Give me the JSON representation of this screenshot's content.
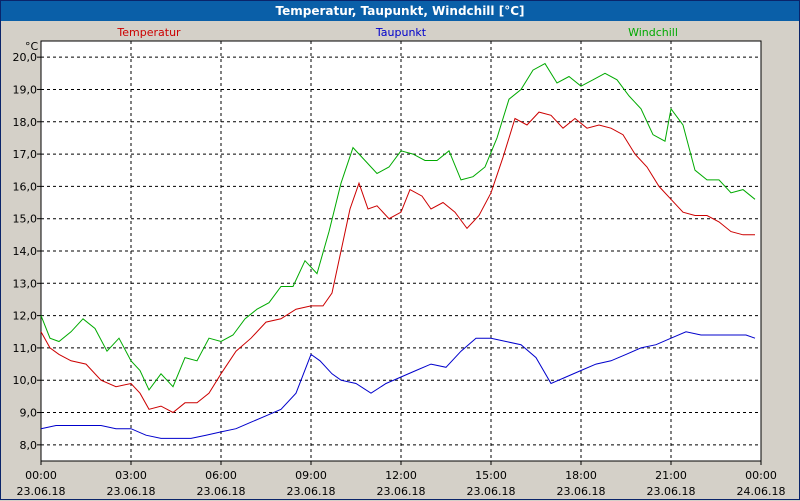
{
  "window": {
    "title": "Temperatur, Taupunkt, Windchill [°C]"
  },
  "chart_data": {
    "type": "line",
    "y_unit": "°C",
    "ylim": [
      7.5,
      20.5
    ],
    "y_ticks": [
      "8,0",
      "9,0",
      "10,0",
      "11,0",
      "12,0",
      "13,0",
      "14,0",
      "15,0",
      "16,0",
      "17,0",
      "18,0",
      "19,0",
      "20,0"
    ],
    "y_tick_values": [
      8,
      9,
      10,
      11,
      12,
      13,
      14,
      15,
      16,
      17,
      18,
      19,
      20
    ],
    "xlim": [
      0,
      24
    ],
    "x_ticks": [
      {
        "x": 0,
        "time": "00:00",
        "date": "23.06.18"
      },
      {
        "x": 3,
        "time": "03:00",
        "date": "23.06.18"
      },
      {
        "x": 6,
        "time": "06:00",
        "date": "23.06.18"
      },
      {
        "x": 9,
        "time": "09:00",
        "date": "23.06.18"
      },
      {
        "x": 12,
        "time": "12:00",
        "date": "23.06.18"
      },
      {
        "x": 15,
        "time": "15:00",
        "date": "23.06.18"
      },
      {
        "x": 18,
        "time": "18:00",
        "date": "23.06.18"
      },
      {
        "x": 21,
        "time": "21:00",
        "date": "23.06.18"
      },
      {
        "x": 24,
        "time": "00:00",
        "date": "24.06.18"
      }
    ],
    "grid": true,
    "series": [
      {
        "name": "Temperatur",
        "color": "#cc0000",
        "x": [
          0,
          0.3,
          0.6,
          1,
          1.5,
          2,
          2.5,
          3,
          3.3,
          3.6,
          4,
          4.4,
          4.8,
          5.2,
          5.6,
          6,
          6.5,
          7,
          7.5,
          8,
          8.5,
          9,
          9.4,
          9.7,
          10,
          10.3,
          10.6,
          10.9,
          11.2,
          11.6,
          12,
          12.3,
          12.7,
          13,
          13.4,
          13.8,
          14.2,
          14.6,
          15,
          15.4,
          15.8,
          16.2,
          16.6,
          17,
          17.4,
          17.8,
          18.2,
          18.6,
          19,
          19.4,
          19.8,
          20.2,
          20.6,
          21,
          21.4,
          21.8,
          22.2,
          22.6,
          23,
          23.4,
          23.8
        ],
        "y": [
          11.5,
          11.0,
          10.8,
          10.6,
          10.5,
          10.0,
          9.8,
          9.9,
          9.6,
          9.1,
          9.2,
          9.0,
          9.3,
          9.3,
          9.6,
          10.2,
          10.9,
          11.3,
          11.8,
          11.9,
          12.2,
          12.3,
          12.3,
          12.7,
          14.0,
          15.3,
          16.1,
          15.3,
          15.4,
          15.0,
          15.2,
          15.9,
          15.7,
          15.3,
          15.5,
          15.2,
          14.7,
          15.1,
          15.8,
          16.9,
          18.1,
          17.9,
          18.3,
          18.2,
          17.8,
          18.1,
          17.8,
          17.9,
          17.8,
          17.6,
          17.0,
          16.6,
          16.0,
          15.6,
          15.2,
          15.1,
          15.1,
          14.9,
          14.6,
          14.5,
          14.5
        ]
      },
      {
        "name": "Taupunkt",
        "color": "#0000cc",
        "x": [
          0,
          0.5,
          1,
          1.5,
          2,
          2.5,
          3,
          3.5,
          4,
          4.5,
          5,
          5.5,
          6,
          6.5,
          7,
          7.5,
          8,
          8.5,
          9,
          9.3,
          9.7,
          10,
          10.5,
          11,
          11.5,
          12,
          12.5,
          13,
          13.5,
          14,
          14.5,
          15,
          15.5,
          16,
          16.5,
          17,
          17.5,
          18,
          18.5,
          19,
          19.5,
          20,
          20.5,
          21,
          21.5,
          22,
          22.5,
          23,
          23.5,
          23.8
        ],
        "y": [
          8.5,
          8.6,
          8.6,
          8.6,
          8.6,
          8.5,
          8.5,
          8.3,
          8.2,
          8.2,
          8.2,
          8.3,
          8.4,
          8.5,
          8.7,
          8.9,
          9.1,
          9.6,
          10.8,
          10.6,
          10.2,
          10.0,
          9.9,
          9.6,
          9.9,
          10.1,
          10.3,
          10.5,
          10.4,
          10.9,
          11.3,
          11.3,
          11.2,
          11.1,
          10.7,
          9.9,
          10.1,
          10.3,
          10.5,
          10.6,
          10.8,
          11.0,
          11.1,
          11.3,
          11.5,
          11.4,
          11.4,
          11.4,
          11.4,
          11.3
        ]
      },
      {
        "name": "Windchill",
        "color": "#00aa00",
        "x": [
          0,
          0.3,
          0.6,
          1,
          1.4,
          1.8,
          2.2,
          2.6,
          3,
          3.3,
          3.6,
          4,
          4.4,
          4.8,
          5.2,
          5.6,
          6,
          6.4,
          6.8,
          7.2,
          7.6,
          8,
          8.4,
          8.8,
          9.2,
          9.6,
          10,
          10.4,
          10.8,
          11.2,
          11.6,
          12,
          12.4,
          12.8,
          13.2,
          13.6,
          14,
          14.4,
          14.8,
          15.2,
          15.6,
          16,
          16.4,
          16.8,
          17.2,
          17.6,
          18,
          18.4,
          18.8,
          19.2,
          19.6,
          20,
          20.4,
          20.8,
          21,
          21.4,
          21.8,
          22.2,
          22.6,
          23,
          23.4,
          23.8
        ],
        "y": [
          12.0,
          11.3,
          11.2,
          11.5,
          11.9,
          11.6,
          10.9,
          11.3,
          10.6,
          10.3,
          9.7,
          10.2,
          9.8,
          10.7,
          10.6,
          11.3,
          11.2,
          11.4,
          11.9,
          12.2,
          12.4,
          12.9,
          12.9,
          13.7,
          13.3,
          14.6,
          16.1,
          17.2,
          16.8,
          16.4,
          16.6,
          17.1,
          17.0,
          16.8,
          16.8,
          17.1,
          16.2,
          16.3,
          16.6,
          17.5,
          18.7,
          19.0,
          19.6,
          19.8,
          19.2,
          19.4,
          19.1,
          19.3,
          19.5,
          19.3,
          18.8,
          18.4,
          17.6,
          17.4,
          18.4,
          17.9,
          16.5,
          16.2,
          16.2,
          15.8,
          15.9,
          15.6
        ]
      }
    ]
  }
}
